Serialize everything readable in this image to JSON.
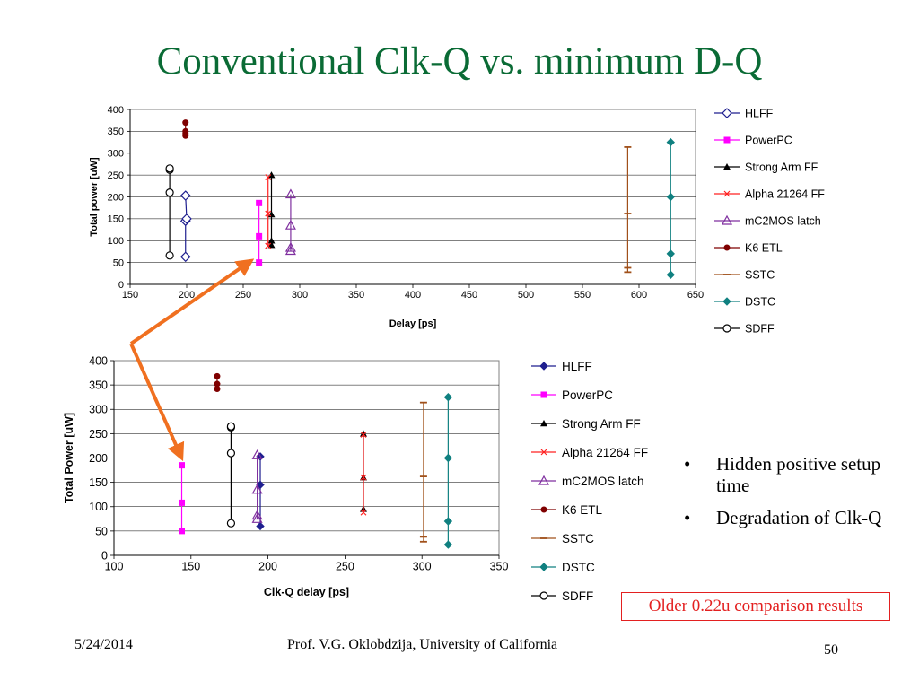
{
  "slide": {
    "title": "Conventional Clk-Q vs. minimum D-Q",
    "bullets": [
      "Hidden positive setup time",
      "Degradation of Clk-Q"
    ],
    "note": "Older 0.22u comparison results",
    "footer": {
      "date": "5/24/2014",
      "author": "Prof. V.G. Oklobdzija, University of California",
      "page": "50"
    },
    "colors": {
      "title": "#0a6b35",
      "arrow": "#f07020",
      "note": "#e32020"
    }
  },
  "chart_data": [
    {
      "type": "scatter",
      "xlabel": "Delay [ps]",
      "ylabel": "Total power [uW]",
      "xlim": [
        150,
        650
      ],
      "ylim": [
        0,
        400
      ],
      "xticks": [
        "150",
        "200",
        "250",
        "300",
        "350",
        "400",
        "450",
        "500",
        "550",
        "600",
        "650"
      ],
      "yticks": [
        "0",
        "50",
        "100",
        "150",
        "200",
        "250",
        "300",
        "350",
        "400"
      ],
      "grid": "horizontal",
      "legend": "right",
      "series": [
        {
          "name": "HLFF",
          "marker": "diamond-open",
          "color": "#1f1f8f",
          "points": [
            [
              199,
              63
            ],
            [
              199,
              145
            ],
            [
              200,
              150
            ],
            [
              199,
              203
            ]
          ]
        },
        {
          "name": "PowerPC",
          "marker": "square",
          "color": "#ff00ff",
          "points": [
            [
              264,
              50
            ],
            [
              264,
              110
            ],
            [
              264,
              186
            ]
          ]
        },
        {
          "name": "Strong Arm FF",
          "marker": "triangle",
          "color": "#000000",
          "points": [
            [
              275,
              90
            ],
            [
              275,
              100
            ],
            [
              275,
              160
            ],
            [
              275,
              250
            ]
          ]
        },
        {
          "name": "Alpha 21264 FF",
          "marker": "x",
          "color": "#ff2020",
          "points": [
            [
              272,
              88
            ],
            [
              272,
              162
            ],
            [
              272,
              245
            ]
          ]
        },
        {
          "name": "mC2MOS latch",
          "marker": "triangle-open",
          "color": "#7f2f9f",
          "points": [
            [
              292,
              77
            ],
            [
              292,
              84
            ],
            [
              292,
              135
            ],
            [
              292,
              206
            ]
          ]
        },
        {
          "name": "K6 ETL",
          "marker": "circle",
          "color": "#7f0000",
          "points": [
            [
              199,
              340
            ],
            [
              199,
              345
            ],
            [
              199,
              350
            ],
            [
              199,
              370
            ]
          ]
        },
        {
          "name": "SSTC",
          "marker": "dash",
          "color": "#a0501a",
          "points": [
            [
              590,
              28
            ],
            [
              590,
              38
            ],
            [
              590,
              162
            ],
            [
              590,
              314
            ]
          ]
        },
        {
          "name": "DSTC",
          "marker": "diamond",
          "color": "#108080",
          "points": [
            [
              628,
              22
            ],
            [
              628,
              70
            ],
            [
              628,
              200
            ],
            [
              628,
              325
            ]
          ]
        },
        {
          "name": "SDFF",
          "marker": "circle-open",
          "color": "#000000",
          "points": [
            [
              185,
              66
            ],
            [
              185,
              210
            ],
            [
              185,
              262
            ],
            [
              185,
              265
            ]
          ]
        }
      ]
    },
    {
      "type": "scatter",
      "xlabel": "Clk-Q delay [ps]",
      "ylabel": "Total Power [uW]",
      "xlim": [
        100,
        350
      ],
      "ylim": [
        0,
        400
      ],
      "xticks": [
        "100",
        "150",
        "200",
        "250",
        "300",
        "350"
      ],
      "yticks": [
        "0",
        "50",
        "100",
        "150",
        "200",
        "250",
        "300",
        "350",
        "400"
      ],
      "grid": "horizontal",
      "legend": "right",
      "series": [
        {
          "name": "HLFF",
          "marker": "diamond",
          "color": "#1f1f8f",
          "points": [
            [
              195,
              60
            ],
            [
              195,
              145
            ],
            [
              195,
              203
            ]
          ]
        },
        {
          "name": "PowerPC",
          "marker": "square",
          "color": "#ff00ff",
          "points": [
            [
              144,
              50
            ],
            [
              144,
              108
            ],
            [
              144,
              185
            ]
          ]
        },
        {
          "name": "Strong Arm FF",
          "marker": "triangle",
          "color": "#000000",
          "points": [
            [
              262,
              95
            ],
            [
              262,
              160
            ],
            [
              262,
              250
            ]
          ]
        },
        {
          "name": "Alpha 21264 FF",
          "marker": "x",
          "color": "#ff2020",
          "points": [
            [
              262,
              88
            ],
            [
              262,
              160
            ],
            [
              262,
              248
            ]
          ]
        },
        {
          "name": "mC2MOS latch",
          "marker": "triangle-open",
          "color": "#7f2f9f",
          "points": [
            [
              193,
              75
            ],
            [
              193,
              82
            ],
            [
              193,
              135
            ],
            [
              193,
              206
            ]
          ]
        },
        {
          "name": "K6 ETL",
          "marker": "circle",
          "color": "#7f0000",
          "points": [
            [
              167,
              342
            ],
            [
              167,
              352
            ],
            [
              167,
              368
            ]
          ]
        },
        {
          "name": "SSTC",
          "marker": "dash",
          "color": "#a0501a",
          "points": [
            [
              301,
              28
            ],
            [
              301,
              38
            ],
            [
              301,
              162
            ],
            [
              301,
              314
            ]
          ]
        },
        {
          "name": "DSTC",
          "marker": "diamond",
          "color": "#108080",
          "points": [
            [
              317,
              22
            ],
            [
              317,
              70
            ],
            [
              317,
              200
            ],
            [
              317,
              325
            ]
          ]
        },
        {
          "name": "SDFF",
          "marker": "circle-open",
          "color": "#000000",
          "points": [
            [
              176,
              66
            ],
            [
              176,
              210
            ],
            [
              176,
              263
            ],
            [
              176,
              265
            ]
          ]
        }
      ]
    }
  ]
}
